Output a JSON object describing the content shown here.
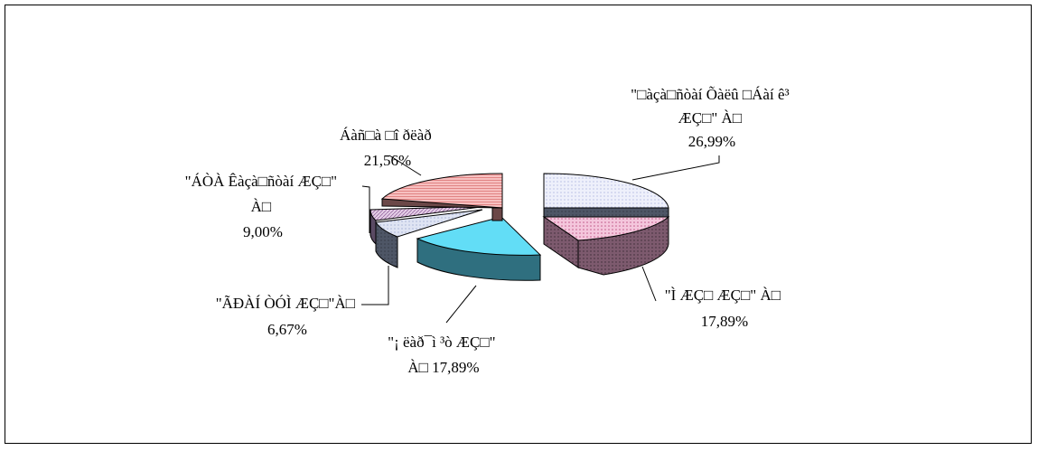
{
  "chart_data": {
    "type": "pie",
    "style": "3d-exploded",
    "legend": "none",
    "slices": [
      {
        "label_lines": [
          "\"□àçà□ñòàí Õàëû □Áàí ê³",
          "ÆÇ□\" À□"
        ],
        "value_label": "26,99%",
        "value": 26.99,
        "color": "#eef0fb"
      },
      {
        "label_lines": [
          "\"Ì ÆÇ□ ÆÇ□\" À□"
        ],
        "value_label": "17,89%",
        "value": 17.89,
        "color": "#f4c6dc"
      },
      {
        "label_lines": [
          "\"¡ ëàð¯ì ³ò ÆÇ□\"",
          "À□ 17,89%"
        ],
        "value_label": "",
        "value": 17.89,
        "color": "#62ddf6"
      },
      {
        "label_lines": [
          "\"ÃÐÀÍ ÒÓÌ  ÆÇ□\"À□"
        ],
        "value_label": "6,67%",
        "value": 6.67,
        "color": "#dfe4f3"
      },
      {
        "label_lines": [
          "\"ÁÒÀ Êàçà□ñòàí  ÆÇ□\"",
          "À□"
        ],
        "value_label": "9,00%",
        "value": 9.0,
        "color": "#e4cde6"
      },
      {
        "label_lines": [
          "Áàñ□à □î ðëàð"
        ],
        "value_label": "21,56%",
        "value": 21.56,
        "color": "#f7c0c0"
      }
    ]
  }
}
